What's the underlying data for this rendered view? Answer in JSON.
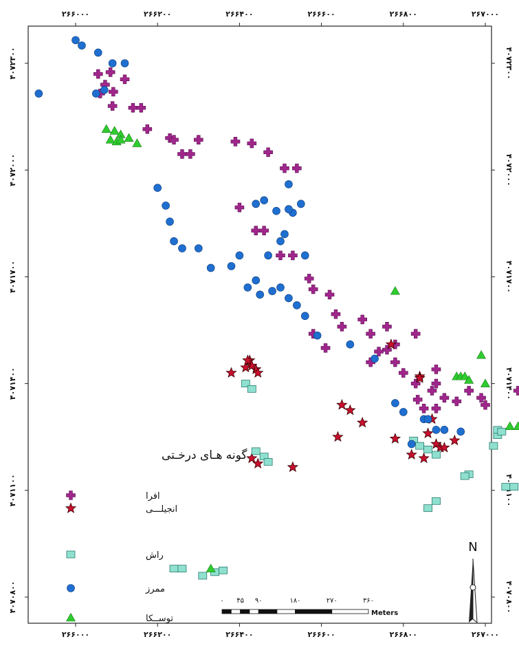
{
  "map": {
    "x_ticks": [
      {
        "value": 266000,
        "label": "۲۶۶۰۰۰"
      },
      {
        "value": 266200,
        "label": "۲۶۶۲۰۰"
      },
      {
        "value": 266400,
        "label": "۲۶۶۴۰۰"
      },
      {
        "value": 266600,
        "label": "۲۶۶۶۰۰"
      },
      {
        "value": 266800,
        "label": "۲۶۶۸۰۰"
      },
      {
        "value": 267000,
        "label": "۲۶۷۰۰۰"
      }
    ],
    "y_ticks": [
      {
        "value": 4072300,
        "label": "۴۰۷۲۳۰۰"
      },
      {
        "value": 4072000,
        "label": "۴۰۷۲۰۰۰"
      },
      {
        "value": 4071700,
        "label": "۴۰۷۱۷۰۰"
      },
      {
        "value": 4071400,
        "label": "۴۰۷۱۴۰۰"
      },
      {
        "value": 4071100,
        "label": "۴۰۷۱۱۰۰"
      },
      {
        "value": 4070800,
        "label": "۴۰۷۰۸۰۰"
      }
    ]
  },
  "legend": {
    "title": "گونه هـای درخـتی",
    "items": [
      {
        "key": "afra",
        "label": "افرا",
        "symbol": "plus",
        "color": "#a0268c"
      },
      {
        "key": "anjili",
        "label": "انجیلـــی",
        "symbol": "star",
        "color": "#c8102e"
      },
      {
        "key": "rash",
        "label": "راش",
        "symbol": "square",
        "color": "#8fe0cf"
      },
      {
        "key": "border",
        "label": "ممرز",
        "symbol": "circle",
        "color": "#1f6fd1"
      },
      {
        "key": "tuska",
        "label": "توســکا",
        "symbol": "triangle",
        "color": "#2ecc2e"
      }
    ]
  },
  "scale_bar": {
    "labels": [
      "۰",
      "۴۵",
      "۹۰",
      "۱۸۰",
      "۲۷۰",
      "۳۶۰"
    ],
    "values": [
      0,
      45,
      90,
      180,
      270,
      360
    ],
    "unit": "Meters"
  },
  "north_arrow": {
    "label": "N"
  },
  "chart_data": {
    "type": "scatter",
    "xlim": [
      265890,
      267080
    ],
    "ylim": [
      4070760,
      4072400
    ],
    "series": [
      {
        "name": "افرا",
        "points": [
          [
            266055,
            4072270
          ],
          [
            266085,
            4072275
          ],
          [
            266120,
            4072255
          ],
          [
            266092,
            4072220
          ],
          [
            266060,
            4072215
          ],
          [
            266072,
            4072240
          ],
          [
            266090,
            4072180
          ],
          [
            266140,
            4072175
          ],
          [
            266160,
            4072175
          ],
          [
            266175,
            4072115
          ],
          [
            266230,
            4072090
          ],
          [
            266240,
            4072085
          ],
          [
            266260,
            4072045
          ],
          [
            266280,
            4072045
          ],
          [
            266300,
            4072085
          ],
          [
            266390,
            4072080
          ],
          [
            266430,
            4072075
          ],
          [
            266470,
            4072050
          ],
          [
            266510,
            4072005
          ],
          [
            266540,
            4072005
          ],
          [
            266400,
            4071895
          ],
          [
            266440,
            4071830
          ],
          [
            266460,
            4071830
          ],
          [
            266500,
            4071760
          ],
          [
            266530,
            4071760
          ],
          [
            266570,
            4071695
          ],
          [
            266580,
            4071665
          ],
          [
            266620,
            4071650
          ],
          [
            266635,
            4071595
          ],
          [
            266650,
            4071560
          ],
          [
            266700,
            4071580
          ],
          [
            266720,
            4071540
          ],
          [
            266760,
            4071495
          ],
          [
            266780,
            4071460
          ],
          [
            266800,
            4071430
          ],
          [
            266830,
            4071400
          ],
          [
            266870,
            4071380
          ],
          [
            266900,
            4071360
          ],
          [
            266930,
            4071350
          ],
          [
            266960,
            4071380
          ],
          [
            266990,
            4071360
          ],
          [
            266835,
            4071355
          ],
          [
            266850,
            4071330
          ],
          [
            266880,
            4071330
          ],
          [
            267000,
            4071340
          ],
          [
            266580,
            4071540
          ],
          [
            266610,
            4071500
          ],
          [
            266780,
            4071510
          ],
          [
            266740,
            4071490
          ],
          [
            266880,
            4071400
          ],
          [
            266880,
            4071440
          ],
          [
            266720,
            4071460
          ],
          [
            266760,
            4071560
          ],
          [
            266830,
            4071540
          ],
          [
            267080,
            4071380
          ]
        ]
      },
      {
        "name": "انجیلـــی",
        "points": [
          [
            266425,
            4071465
          ],
          [
            266440,
            4071440
          ],
          [
            266430,
            4071450
          ],
          [
            266445,
            4071430
          ],
          [
            266415,
            4071445
          ],
          [
            266420,
            4071465
          ],
          [
            266380,
            4071430
          ],
          [
            266430,
            4071190
          ],
          [
            266445,
            4071175
          ],
          [
            266530,
            4071165
          ],
          [
            266650,
            4071340
          ],
          [
            266670,
            4071325
          ],
          [
            266700,
            4071290
          ],
          [
            266640,
            4071250
          ],
          [
            266770,
            4071510
          ],
          [
            266840,
            4071420
          ],
          [
            266840,
            4071415
          ],
          [
            266870,
            4071300
          ],
          [
            266880,
            4071230
          ],
          [
            266890,
            4071220
          ],
          [
            266900,
            4071220
          ],
          [
            266820,
            4071200
          ],
          [
            266780,
            4071245
          ],
          [
            266860,
            4071260
          ],
          [
            266925,
            4071240
          ],
          [
            266850,
            4071190
          ]
        ]
      },
      {
        "name": "راش",
        "points": [
          [
            266415,
            4071400
          ],
          [
            266430,
            4071385
          ],
          [
            266440,
            4071210
          ],
          [
            266460,
            4071195
          ],
          [
            266470,
            4071180
          ],
          [
            266825,
            4071240
          ],
          [
            266840,
            4071225
          ],
          [
            266860,
            4071215
          ],
          [
            266880,
            4071200
          ],
          [
            267020,
            4071225
          ],
          [
            267030,
            4071255
          ],
          [
            267030,
            4071270
          ],
          [
            267040,
            4071265
          ],
          [
            266960,
            4071145
          ],
          [
            266950,
            4071140
          ],
          [
            266880,
            4071070
          ],
          [
            266860,
            4071050
          ],
          [
            266240,
            4070880
          ],
          [
            266260,
            4070880
          ],
          [
            266340,
            4070870
          ],
          [
            266360,
            4070875
          ],
          [
            266310,
            4070860
          ],
          [
            267050,
            4071110
          ],
          [
            267070,
            4071110
          ]
        ]
      },
      {
        "name": "ممرز",
        "points": [
          [
            266000,
            4072365
          ],
          [
            266015,
            4072350
          ],
          [
            266055,
            4072330
          ],
          [
            266090,
            4072300
          ],
          [
            266120,
            4072300
          ],
          [
            266070,
            4072225
          ],
          [
            266050,
            4072215
          ],
          [
            265910,
            4072215
          ],
          [
            266200,
            4071950
          ],
          [
            266220,
            4071900
          ],
          [
            266230,
            4071855
          ],
          [
            266240,
            4071800
          ],
          [
            266260,
            4071780
          ],
          [
            266300,
            4071780
          ],
          [
            266330,
            4071725
          ],
          [
            266380,
            4071730
          ],
          [
            266400,
            4071760
          ],
          [
            266440,
            4071690
          ],
          [
            266420,
            4071670
          ],
          [
            266450,
            4071650
          ],
          [
            266480,
            4071660
          ],
          [
            266500,
            4071670
          ],
          [
            266520,
            4071640
          ],
          [
            266540,
            4071620
          ],
          [
            266560,
            4071590
          ],
          [
            266470,
            4071760
          ],
          [
            266500,
            4071800
          ],
          [
            266510,
            4071820
          ],
          [
            266530,
            4071880
          ],
          [
            266550,
            4071905
          ],
          [
            266520,
            4071960
          ],
          [
            266440,
            4071905
          ],
          [
            266460,
            4071915
          ],
          [
            266490,
            4071885
          ],
          [
            266520,
            4071890
          ],
          [
            266560,
            4071760
          ],
          [
            266590,
            4071535
          ],
          [
            266670,
            4071510
          ],
          [
            266730,
            4071470
          ],
          [
            266780,
            4071345
          ],
          [
            266800,
            4071320
          ],
          [
            266850,
            4071300
          ],
          [
            266860,
            4071300
          ],
          [
            266880,
            4071270
          ],
          [
            266900,
            4071270
          ],
          [
            266940,
            4071265
          ],
          [
            266820,
            4071230
          ]
        ]
      },
      {
        "name": "توســکا",
        "points": [
          [
            266075,
            4072115
          ],
          [
            266095,
            4072110
          ],
          [
            266110,
            4072100
          ],
          [
            266130,
            4072090
          ],
          [
            266085,
            4072085
          ],
          [
            266100,
            4072080
          ],
          [
            266110,
            4072085
          ],
          [
            266150,
            4072075
          ],
          [
            266780,
            4071660
          ],
          [
            266930,
            4071420
          ],
          [
            266940,
            4071420
          ],
          [
            266950,
            4071420
          ],
          [
            266960,
            4071410
          ],
          [
            266990,
            4071480
          ],
          [
            267000,
            4071400
          ],
          [
            267060,
            4071280
          ],
          [
            267080,
            4071280
          ],
          [
            266330,
            4070880
          ]
        ]
      }
    ]
  }
}
